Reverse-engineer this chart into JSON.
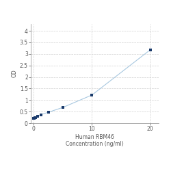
{
  "x": [
    0,
    0.078,
    0.156,
    0.313,
    0.625,
    1.25,
    2.5,
    5,
    10,
    20
  ],
  "y": [
    0.198,
    0.213,
    0.226,
    0.25,
    0.29,
    0.37,
    0.47,
    0.68,
    1.22,
    3.18
  ],
  "line_color": "#a8c8e0",
  "marker_color": "#1a3a6b",
  "marker_size": 3.5,
  "xlabel_line1": "Human RBM46",
  "xlabel_line2": "Concentration (ng/ml)",
  "ylabel": "OD",
  "xlim": [
    -0.5,
    21.5
  ],
  "ylim": [
    0,
    4.3
  ],
  "yticks": [
    0,
    0.5,
    1,
    1.5,
    2,
    2.5,
    3,
    3.5,
    4
  ],
  "xticks": [
    0,
    10,
    20
  ],
  "xtick_labels": [
    "0",
    "10",
    "20"
  ],
  "grid_color": "#d0d0d0",
  "background_color": "#ffffff",
  "axis_fontsize": 5.5,
  "tick_fontsize": 5.5
}
